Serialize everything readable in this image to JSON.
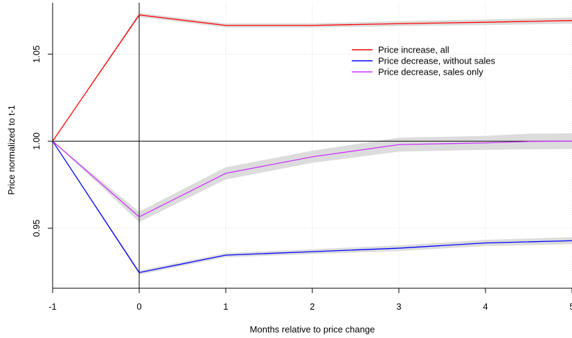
{
  "chart_data": {
    "type": "line",
    "title": "",
    "xlabel": "Months relative to price change",
    "ylabel": "Price normalized to t-1",
    "xlim": [
      -1,
      5
    ],
    "ylim": [
      0.9155,
      1.0795
    ],
    "x_ticks": [
      -1,
      0,
      1,
      2,
      3,
      4,
      5
    ],
    "x_tick_labels": [
      "-1",
      "0",
      "1",
      "2",
      "3",
      "4",
      "5"
    ],
    "y_ticks": [
      0.95,
      1.0,
      1.05
    ],
    "y_tick_labels": [
      "0.95",
      "1.00",
      "1.05"
    ],
    "grid": true,
    "reference_lines": {
      "x": 0,
      "y": 1.0
    },
    "legend_position": "top-right",
    "series": [
      {
        "name": "Price increase, all",
        "color": "#ff0000",
        "x": [
          -1,
          0,
          1,
          2,
          3,
          4,
          5
        ],
        "values": [
          1.0,
          1.0725,
          1.0665,
          1.0665,
          1.0675,
          1.0683,
          1.0693
        ],
        "ci_halfwidth": [
          0.0,
          0.0012,
          0.0012,
          0.0012,
          0.0014,
          0.0016,
          0.0018
        ]
      },
      {
        "name": "Price decrease, without sales",
        "color": "#0000ff",
        "x": [
          -1,
          0,
          1,
          2,
          3,
          4,
          5
        ],
        "values": [
          1.0,
          0.9245,
          0.9345,
          0.9365,
          0.9385,
          0.9415,
          0.9428
        ],
        "ci_halfwidth": [
          0.0,
          0.0012,
          0.0012,
          0.0014,
          0.0016,
          0.0018,
          0.002
        ]
      },
      {
        "name": "Price decrease, sales only",
        "color": "#cc33ff",
        "x": [
          -1,
          0,
          1,
          2,
          3,
          4,
          4.5,
          5
        ],
        "values": [
          1.0,
          0.9565,
          0.9815,
          0.991,
          0.998,
          0.999,
          0.9998,
          1.0
        ],
        "ci_halfwidth": [
          0.0,
          0.003,
          0.0035,
          0.0035,
          0.004,
          0.004,
          0.0045,
          0.0045
        ]
      }
    ]
  }
}
